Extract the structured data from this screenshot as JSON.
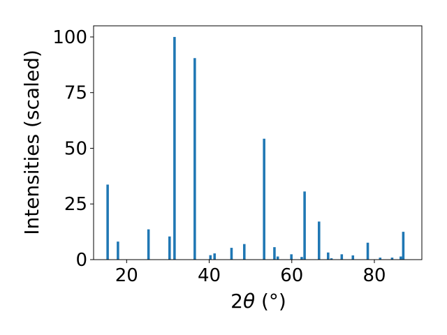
{
  "chart_data": {
    "type": "bar",
    "title": "",
    "xlabel_main": "2",
    "xlabel_theta": "θ",
    "xlabel_unit": " (°)",
    "ylabel": "Intensities (scaled)",
    "xlim": [
      12,
      91.5
    ],
    "ylim": [
      0,
      105
    ],
    "grid": false,
    "legend": "none",
    "bar_color": "#1f77b4",
    "bar_width_deg": 0.6,
    "xticks": [
      {
        "value": 20,
        "label": "20"
      },
      {
        "value": 40,
        "label": "40"
      },
      {
        "value": 60,
        "label": "60"
      },
      {
        "value": 80,
        "label": "80"
      }
    ],
    "yticks": [
      {
        "value": 0,
        "label": "0"
      },
      {
        "value": 25,
        "label": "25"
      },
      {
        "value": 50,
        "label": "50"
      },
      {
        "value": 75,
        "label": "75"
      },
      {
        "value": 100,
        "label": "100"
      }
    ],
    "points": [
      {
        "x": 15.4,
        "y": 33.7
      },
      {
        "x": 17.9,
        "y": 8.1
      },
      {
        "x": 25.3,
        "y": 13.6
      },
      {
        "x": 30.4,
        "y": 10.4
      },
      {
        "x": 31.6,
        "y": 100.0
      },
      {
        "x": 36.5,
        "y": 90.5
      },
      {
        "x": 40.3,
        "y": 2.0
      },
      {
        "x": 41.3,
        "y": 2.8
      },
      {
        "x": 45.4,
        "y": 5.3
      },
      {
        "x": 48.5,
        "y": 7.0
      },
      {
        "x": 53.3,
        "y": 54.3
      },
      {
        "x": 55.8,
        "y": 5.6
      },
      {
        "x": 56.6,
        "y": 1.4
      },
      {
        "x": 59.9,
        "y": 2.4
      },
      {
        "x": 62.4,
        "y": 1.2
      },
      {
        "x": 63.1,
        "y": 30.6
      },
      {
        "x": 66.6,
        "y": 17.1
      },
      {
        "x": 68.8,
        "y": 3.2
      },
      {
        "x": 69.6,
        "y": 0.6
      },
      {
        "x": 72.1,
        "y": 2.4
      },
      {
        "x": 74.8,
        "y": 1.9
      },
      {
        "x": 78.4,
        "y": 7.6
      },
      {
        "x": 81.4,
        "y": 0.9
      },
      {
        "x": 84.3,
        "y": 0.9
      },
      {
        "x": 86.4,
        "y": 1.4
      },
      {
        "x": 87.0,
        "y": 12.5
      }
    ]
  }
}
